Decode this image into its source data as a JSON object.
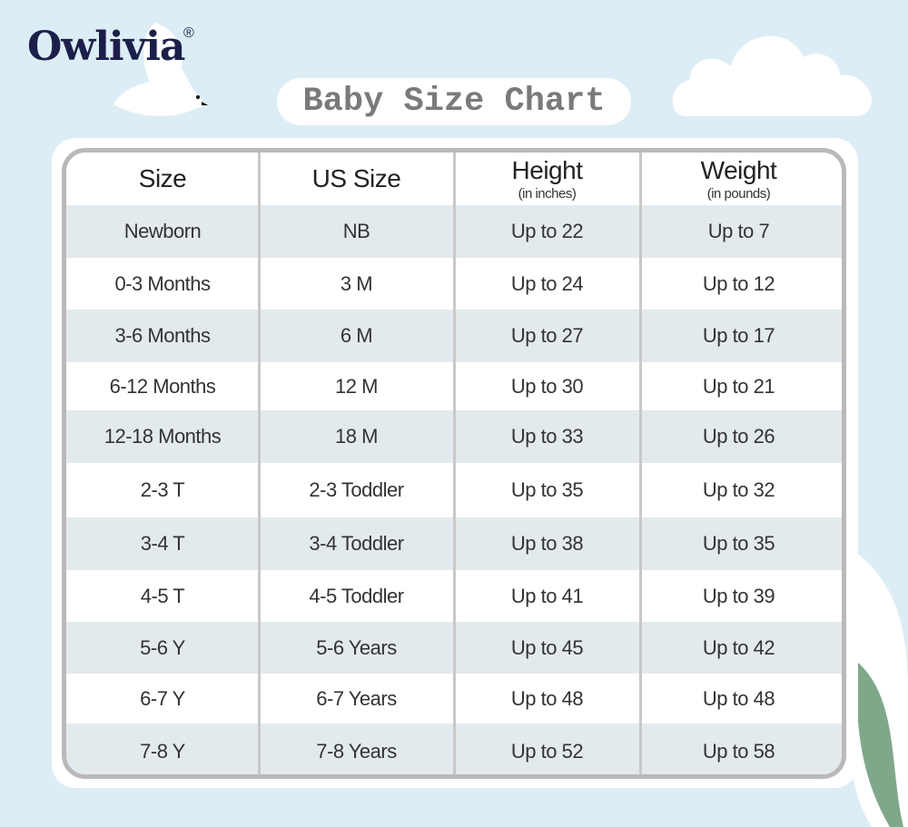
{
  "brand": {
    "logo": "Owlivia",
    "registered": "®"
  },
  "title": "Baby Size Chart",
  "colors": {
    "background": "#dcedf5",
    "row_shade": "#e3eaee",
    "border": "#b9b9b9",
    "logo": "#1c1f4a",
    "leaf": "#7fa88a"
  },
  "table": {
    "headers": [
      {
        "main": "Size",
        "sub": ""
      },
      {
        "main": "US Size",
        "sub": ""
      },
      {
        "main": "Height",
        "sub": "(in inches)"
      },
      {
        "main": "Weight",
        "sub": "(in pounds)"
      }
    ],
    "rows": [
      [
        "Newborn",
        "NB",
        "Up to 22",
        "Up to 7"
      ],
      [
        "0-3 Months",
        "3 M",
        "Up to 24",
        "Up to 12"
      ],
      [
        "3-6 Months",
        "6 M",
        "Up to 27",
        "Up to 17"
      ],
      [
        "6-12 Months",
        "12 M",
        "Up to 30",
        "Up to 21"
      ],
      [
        "12-18 Months",
        "18 M",
        "Up to 33",
        "Up to 26"
      ],
      [
        "2-3 T",
        "2-3 Toddler",
        "Up to 35",
        "Up to 32"
      ],
      [
        "3-4 T",
        "3-4 Toddler",
        "Up to 38",
        "Up to 35"
      ],
      [
        "4-5 T",
        "4-5 Toddler",
        "Up to 41",
        "Up to 39"
      ],
      [
        "5-6 Y",
        "5-6 Years",
        "Up to 45",
        "Up to 42"
      ],
      [
        "6-7 Y",
        "6-7 Years",
        "Up to 48",
        "Up to 48"
      ],
      [
        "7-8 Y",
        "7-8 Years",
        "Up to 52",
        "Up to 58"
      ]
    ]
  }
}
